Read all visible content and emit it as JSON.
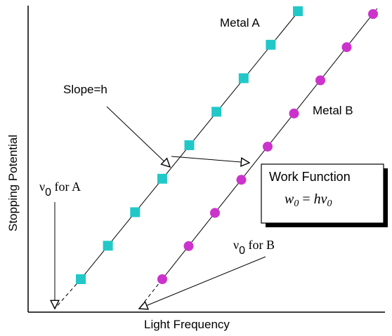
{
  "axes": {
    "xlabel": "Light Frequency",
    "ylabel": "Stopping Potential"
  },
  "lines": [
    {
      "name": "Metal A",
      "point_color": "#22c8c8",
      "marker": "square",
      "point_count": 9
    },
    {
      "name": "Metal B",
      "point_color": "#cc33cc",
      "marker": "circle",
      "point_count": 9
    }
  ],
  "annotations": {
    "slope": "Slope=h",
    "threshold_a": {
      "symbol": "ν",
      "subscript": "0",
      "suffix": " for A"
    },
    "threshold_b": {
      "symbol": "ν",
      "subscript": "0",
      "suffix": " for B"
    },
    "work_function": {
      "title": "Work Function",
      "formula": {
        "lhs": "w",
        "lhs_sub": "0",
        "op": " = ",
        "rhs": "hv",
        "rhs_sub": "0"
      }
    }
  },
  "colors": {
    "metal_a_points": "#22c8c8",
    "metal_b_points": "#cc33cc",
    "lines": "#000000",
    "background": "#ffffff"
  }
}
